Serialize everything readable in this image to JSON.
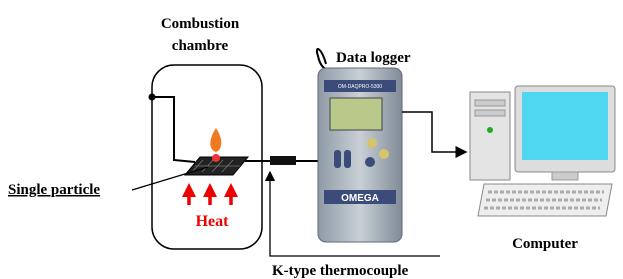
{
  "labels": {
    "chamber_line1": "Combustion",
    "chamber_line2": "chambre",
    "data_logger": "Data logger",
    "single_particle": "Single particle",
    "heat": "Heat",
    "computer": "Computer",
    "thermocouple": "K-type thermocouple"
  },
  "device": {
    "model": "OM-DAQPRO-5300",
    "brand": "OMEGA"
  }
}
